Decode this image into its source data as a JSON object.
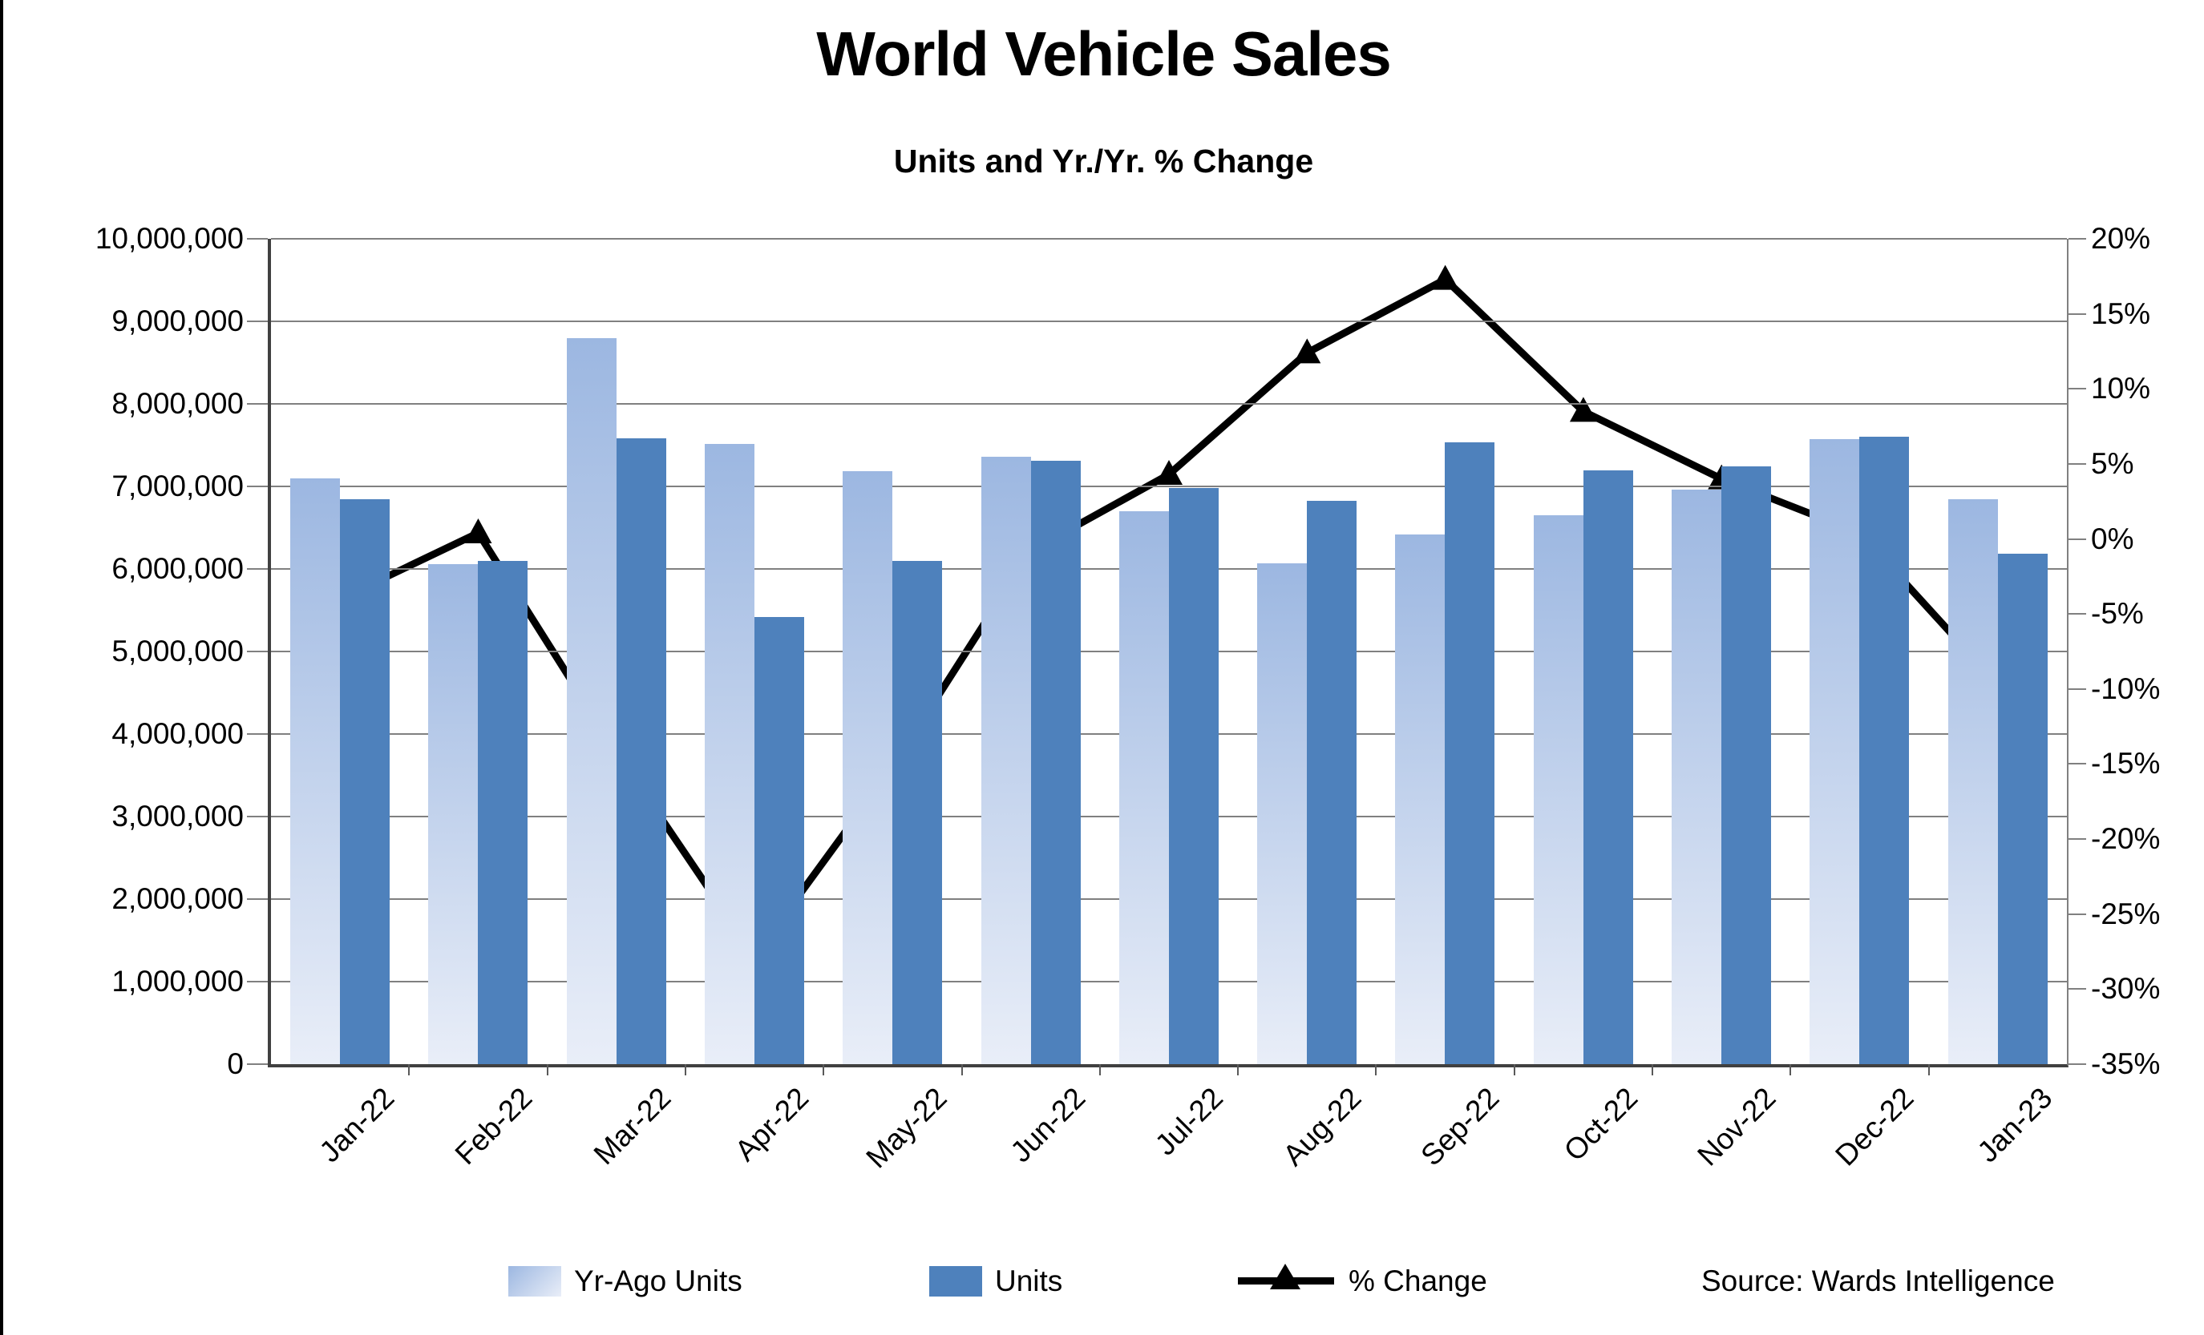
{
  "title": "World Vehicle Sales",
  "subtitle": "Units and Yr./Yr. % Change",
  "source_note": "Source: Wards Intelligence",
  "colors": {
    "bar_light_top": "#9cb7e1",
    "bar_light_bottom": "#e9eef8",
    "bar_dark": "#4e81bc",
    "line": "#000000",
    "gridline": "#808080",
    "axis": "#404040"
  },
  "legend": [
    {
      "label": "Yr-Ago Units",
      "swatch": "bar-light-swatch"
    },
    {
      "label": "Units",
      "swatch": "bar-dark-swatch"
    },
    {
      "label": "% Change",
      "swatch": "line-marker-swatch"
    }
  ],
  "chart_data": {
    "type": "bar",
    "subtype": "grouped-bars-with-line-on-secondary-axis",
    "categories": [
      "Jan-22",
      "Feb-22",
      "Mar-22",
      "Apr-22",
      "May-22",
      "Jun-22",
      "Jul-22",
      "Aug-22",
      "Sep-22",
      "Oct-22",
      "Nov-22",
      "Dec-22",
      "Jan-23"
    ],
    "series": [
      {
        "name": "Yr-Ago Units",
        "type": "bar",
        "axis": "left",
        "values": [
          7100000,
          6060000,
          8800000,
          7510000,
          7180000,
          7360000,
          6700000,
          6070000,
          6420000,
          6650000,
          6960000,
          7570000,
          6840000
        ]
      },
      {
        "name": "Units",
        "type": "bar",
        "axis": "left",
        "values": [
          6840000,
          6100000,
          7580000,
          5420000,
          6100000,
          7310000,
          6980000,
          6830000,
          7530000,
          7190000,
          7240000,
          7600000,
          6180000
        ]
      },
      {
        "name": "% Change",
        "type": "line",
        "axis": "right",
        "values": [
          -4.0,
          0.4,
          -14.2,
          -27.8,
          -15.2,
          -0.8,
          4.3,
          12.4,
          17.3,
          8.5,
          4.0,
          0.4,
          -9.7
        ]
      }
    ],
    "left_axis": {
      "min": 0,
      "max": 10000000,
      "step": 1000000,
      "tick_labels_top_to_bottom": [
        "10,000,000",
        "9,000,000",
        "8,000,000",
        "7,000,000",
        "6,000,000",
        "5,000,000",
        "4,000,000",
        "3,000,000",
        "2,000,000",
        "1,000,000",
        "0"
      ]
    },
    "right_axis": {
      "min": -35,
      "max": 20,
      "step": 5,
      "tick_labels_top_to_bottom": [
        "20%",
        "15%",
        "10%",
        "5%",
        "0%",
        "-5%",
        "-10%",
        "-15%",
        "-20%",
        "-25%",
        "-30%",
        "-35%"
      ]
    },
    "grid": true,
    "legend_position": "bottom"
  }
}
